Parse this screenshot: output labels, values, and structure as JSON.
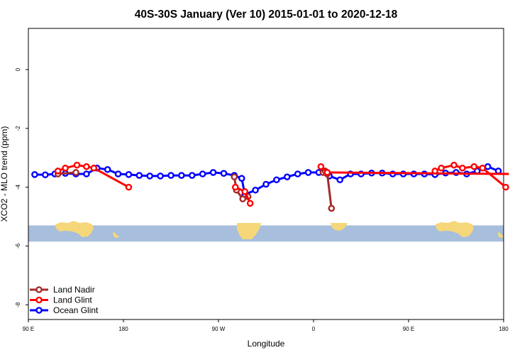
{
  "chart_data": {
    "type": "line",
    "title": "40S-30S January (Ver 10)   2015-01-01 to 2020-12-18",
    "xlabel": "Longitude",
    "ylabel": "XCO2 - MLO trend (ppm)",
    "xlim": [
      90,
      540
    ],
    "ylim": [
      -8.5,
      1.4
    ],
    "x_ticks": [
      {
        "value": 90,
        "label": "90 E"
      },
      {
        "value": 180,
        "label": "180"
      },
      {
        "value": 270,
        "label": "90 W"
      },
      {
        "value": 360,
        "label": "0"
      },
      {
        "value": 450,
        "label": "90 E"
      },
      {
        "value": 540,
        "label": "180"
      }
    ],
    "y_ticks": [
      {
        "value": 0,
        "label": "0"
      },
      {
        "value": -2,
        "label": "-2"
      },
      {
        "value": -4,
        "label": "-4"
      },
      {
        "value": -6,
        "label": "-6"
      },
      {
        "value": -8,
        "label": "-8"
      }
    ],
    "grid": false,
    "legend_position": "bottom-left",
    "map_strip": {
      "y_top": -5.3,
      "y_bottom": -5.85,
      "ocean_color": "#a7bedc",
      "land_color": "#f5d77a"
    },
    "series": [
      {
        "name": "Land Nadir",
        "color": "#a52a2a",
        "x": [
          118,
          135,
          285,
          287,
          293,
          298,
          369,
          371,
          373,
          377
        ],
        "values": [
          -3.55,
          -3.5,
          -3.65,
          -4.1,
          -4.4,
          -4.32,
          -3.5,
          -3.45,
          -3.55,
          -4.72
        ],
        "segments": [
          [
            0,
            2
          ],
          [
            2,
            6
          ],
          [
            6,
            10
          ]
        ]
      },
      {
        "name": "Land Glint",
        "color": "#ff0000",
        "x": [
          118,
          125,
          136,
          145,
          152,
          185,
          286,
          295,
          300,
          367,
          373,
          545,
          475,
          481,
          493,
          501,
          512,
          520,
          542
        ],
        "values": [
          -3.45,
          -3.35,
          -3.25,
          -3.3,
          -3.35,
          -4.0,
          -4.0,
          -4.15,
          -4.55,
          -3.3,
          -3.5,
          -3.55,
          -3.45,
          -3.35,
          -3.25,
          -3.35,
          -3.3,
          -3.35,
          -4.0
        ],
        "segments": [
          [
            0,
            6
          ],
          [
            6,
            9
          ],
          [
            9,
            12
          ],
          [
            12,
            19
          ]
        ]
      },
      {
        "name": "Ocean Glint",
        "color": "#0000ff",
        "x": [
          96,
          106,
          115,
          125,
          135,
          145,
          155,
          165,
          175,
          185,
          195,
          205,
          215,
          225,
          235,
          245,
          255,
          265,
          275,
          285,
          292,
          295,
          305,
          315,
          325,
          335,
          345,
          355,
          365,
          375,
          385,
          395,
          405,
          415,
          425,
          435,
          445,
          455,
          465,
          475,
          485,
          495,
          505,
          515,
          525,
          535
        ],
        "values": [
          -3.57,
          -3.58,
          -3.55,
          -3.53,
          -3.55,
          -3.55,
          -3.35,
          -3.4,
          -3.55,
          -3.57,
          -3.6,
          -3.62,
          -3.62,
          -3.6,
          -3.6,
          -3.6,
          -3.55,
          -3.5,
          -3.53,
          -3.6,
          -3.7,
          -4.25,
          -4.1,
          -3.9,
          -3.75,
          -3.65,
          -3.55,
          -3.5,
          -3.5,
          -3.62,
          -3.75,
          -3.55,
          -3.55,
          -3.52,
          -3.52,
          -3.55,
          -3.55,
          -3.55,
          -3.55,
          -3.57,
          -3.52,
          -3.5,
          -3.55,
          -3.45,
          -3.3,
          -3.45
        ]
      }
    ]
  }
}
